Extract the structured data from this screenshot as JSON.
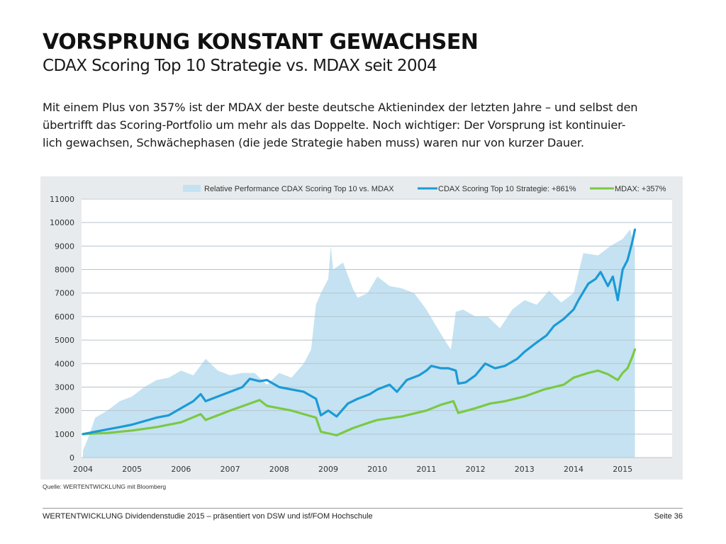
{
  "header": {
    "title": "VORSPRUNG KONSTANT GEWACHSEN",
    "subtitle": "CDAX Scoring Top 10 Strategie vs. MDAX seit 2004"
  },
  "body_text": {
    "lines": [
      "Mit einem Plus von 357% ist der MDAX der beste deutsche Aktienindex der letzten Jahre – und selbst den",
      "übertrifft das Scoring-Portfolio um mehr als das Doppelte. Noch wichtiger: Der Vorsprung ist kontinuier-",
      "lich gewachsen, Schwächephasen (die jede Strategie haben muss) waren nur von kurzer Dauer."
    ]
  },
  "source": "Quelle: WERTENTWICKLUNG mit Bloomberg",
  "footer": {
    "left": "WERTENTWICKLUNG Dividendenstudie 2015 – präsentiert von DSW und isf/FOM Hochschule",
    "right": "Seite 36"
  },
  "colors": {
    "area": "#c4e2f2",
    "cdax": "#1b9ad6",
    "mdax": "#7ac943",
    "panel": "#e8ebed",
    "grid": "#b7c3cb"
  },
  "chart_data": {
    "type": "line",
    "title": "",
    "xlabel": "",
    "ylabel": "",
    "xlim": [
      2004,
      2016
    ],
    "ylim": [
      0,
      11000
    ],
    "yticks": [
      "0",
      "1000",
      "2000",
      "3000",
      "4000",
      "5000",
      "6000",
      "7000",
      "8000",
      "9000",
      "10000",
      "11000"
    ],
    "xticks": [
      "2004",
      "2005",
      "2006",
      "2007",
      "2008",
      "2009",
      "2010",
      "2011",
      "2012",
      "2013",
      "2014",
      "2015"
    ],
    "grid": true,
    "legend_position": "top-right",
    "series": [
      {
        "name": "Relative Performance CDAX Scoring Top 10 vs. MDAX",
        "kind": "area",
        "x": [
          2004.0,
          2004.1,
          2004.25,
          2004.5,
          2004.75,
          2005.0,
          2005.25,
          2005.5,
          2005.75,
          2006.0,
          2006.25,
          2006.5,
          2006.75,
          2007.0,
          2007.25,
          2007.5,
          2007.75,
          2008.0,
          2008.25,
          2008.5,
          2008.65,
          2008.75,
          2008.85,
          2009.0,
          2009.05,
          2009.1,
          2009.3,
          2009.5,
          2009.6,
          2009.8,
          2010.0,
          2010.25,
          2010.5,
          2010.75,
          2011.0,
          2011.2,
          2011.4,
          2011.5,
          2011.6,
          2011.75,
          2012.0,
          2012.25,
          2012.5,
          2012.75,
          2013.0,
          2013.25,
          2013.5,
          2013.75,
          2014.0,
          2014.2,
          2014.5,
          2014.75,
          2015.0,
          2015.15,
          2015.25
        ],
        "values": [
          300,
          800,
          1700,
          2000,
          2400,
          2600,
          3000,
          3300,
          3400,
          3700,
          3500,
          4200,
          3700,
          3500,
          3600,
          3600,
          3100,
          3600,
          3400,
          4000,
          4600,
          6500,
          7000,
          7600,
          9000,
          8000,
          8300,
          7200,
          6800,
          7000,
          7700,
          7300,
          7200,
          7000,
          6300,
          5600,
          4900,
          4600,
          6200,
          6300,
          6000,
          6000,
          5500,
          6300,
          6700,
          6500,
          7100,
          6600,
          7000,
          8700,
          8600,
          9000,
          9300,
          9700,
          8900
        ]
      },
      {
        "name": "CDAX Scoring Top 10 Strategie: +861%",
        "kind": "line",
        "x": [
          2004.0,
          2004.25,
          2004.5,
          2004.75,
          2005.0,
          2005.25,
          2005.5,
          2005.75,
          2006.0,
          2006.25,
          2006.4,
          2006.5,
          2006.75,
          2007.0,
          2007.25,
          2007.4,
          2007.6,
          2007.75,
          2008.0,
          2008.25,
          2008.5,
          2008.75,
          2008.85,
          2009.0,
          2009.17,
          2009.4,
          2009.6,
          2009.85,
          2010.0,
          2010.25,
          2010.4,
          2010.6,
          2010.85,
          2011.0,
          2011.1,
          2011.3,
          2011.45,
          2011.6,
          2011.65,
          2011.8,
          2012.0,
          2012.2,
          2012.4,
          2012.6,
          2012.85,
          2013.0,
          2013.25,
          2013.45,
          2013.6,
          2013.8,
          2014.0,
          2014.1,
          2014.3,
          2014.45,
          2014.55,
          2014.7,
          2014.8,
          2014.9,
          2015.0,
          2015.1,
          2015.2,
          2015.25
        ],
        "values": [
          1000,
          1100,
          1200,
          1300,
          1400,
          1550,
          1700,
          1800,
          2100,
          2400,
          2700,
          2400,
          2600,
          2800,
          3000,
          3350,
          3250,
          3300,
          3000,
          2900,
          2800,
          2500,
          1800,
          2000,
          1750,
          2300,
          2500,
          2700,
          2900,
          3100,
          2800,
          3300,
          3500,
          3700,
          3900,
          3800,
          3800,
          3700,
          3150,
          3200,
          3500,
          4000,
          3800,
          3900,
          4200,
          4500,
          4900,
          5200,
          5600,
          5900,
          6300,
          6700,
          7400,
          7600,
          7900,
          7300,
          7700,
          6700,
          8000,
          8400,
          9200,
          9700
        ]
      },
      {
        "name": "MDAX: +357%",
        "kind": "line",
        "x": [
          2004.0,
          2004.5,
          2005.0,
          2005.5,
          2006.0,
          2006.4,
          2006.5,
          2007.0,
          2007.4,
          2007.6,
          2007.75,
          2008.0,
          2008.25,
          2008.5,
          2008.75,
          2008.85,
          2009.17,
          2009.5,
          2009.85,
          2010.0,
          2010.5,
          2011.0,
          2011.3,
          2011.55,
          2011.65,
          2012.0,
          2012.3,
          2012.6,
          2013.0,
          2013.4,
          2013.8,
          2014.0,
          2014.3,
          2014.5,
          2014.7,
          2014.9,
          2015.0,
          2015.1,
          2015.2,
          2015.25
        ],
        "values": [
          1000,
          1050,
          1150,
          1300,
          1500,
          1850,
          1600,
          2000,
          2300,
          2450,
          2200,
          2100,
          2000,
          1850,
          1700,
          1100,
          950,
          1250,
          1500,
          1600,
          1750,
          2000,
          2250,
          2400,
          1900,
          2100,
          2300,
          2400,
          2600,
          2900,
          3100,
          3400,
          3600,
          3700,
          3550,
          3300,
          3600,
          3800,
          4300,
          4600
        ]
      }
    ]
  }
}
